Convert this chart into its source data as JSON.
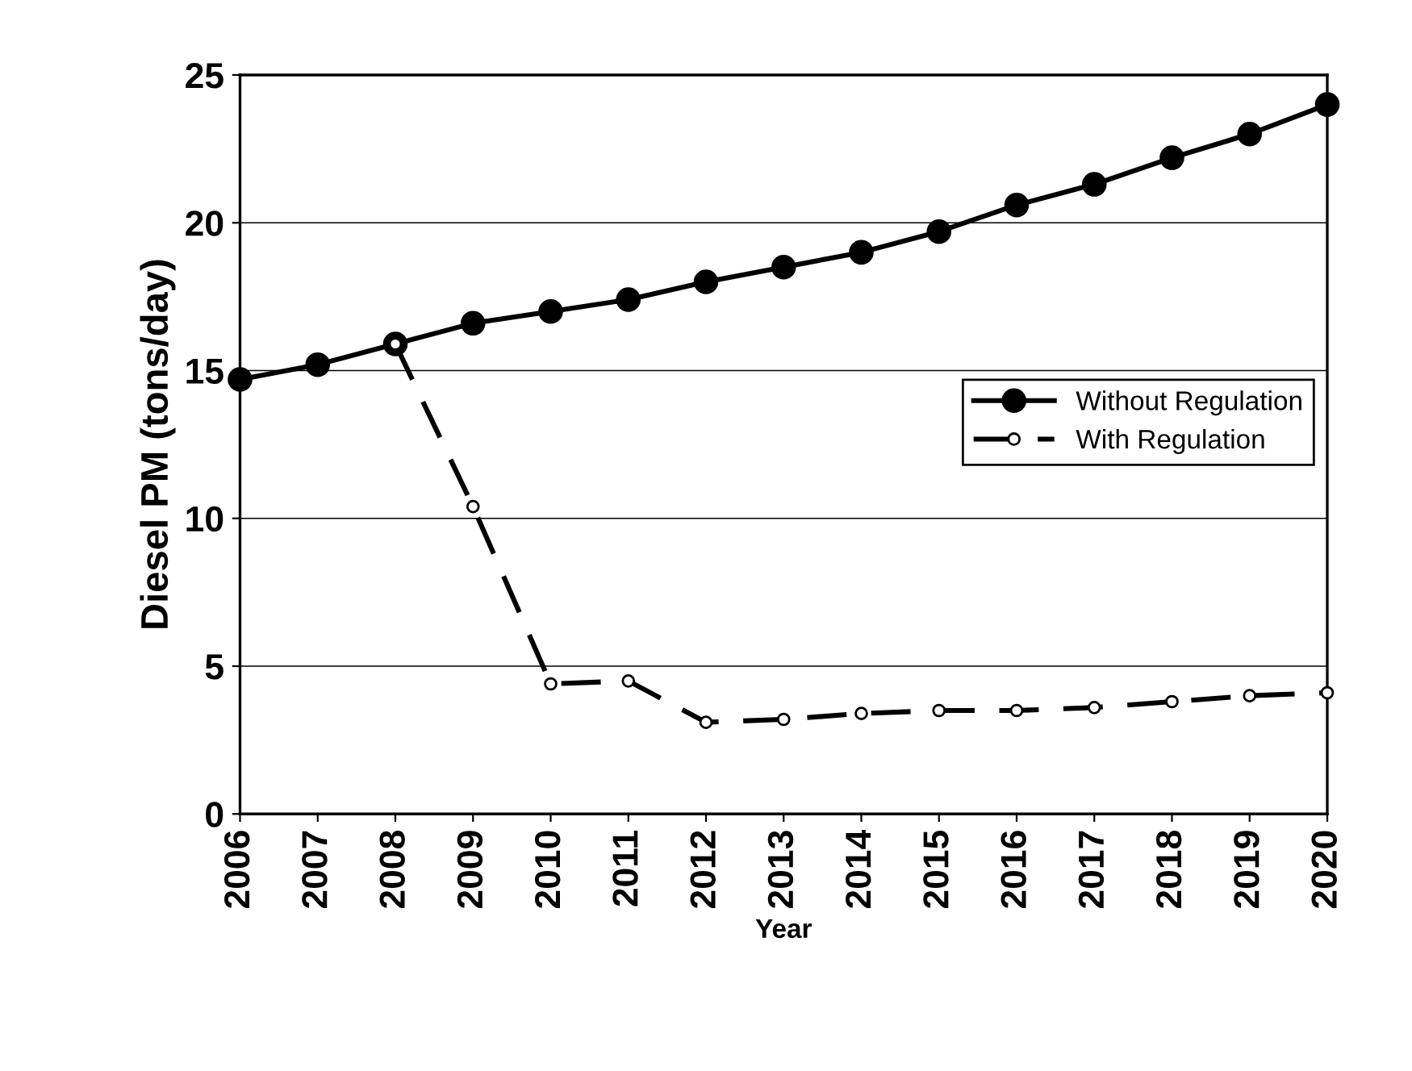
{
  "chart_data": {
    "type": "line",
    "xlabel": "Year",
    "ylabel": "Diesel PM (tons/day)",
    "categories": [
      "2006",
      "2007",
      "2008",
      "2009",
      "2010",
      "2011",
      "2012",
      "2013",
      "2014",
      "2015",
      "2016",
      "2017",
      "2018",
      "2019",
      "2020"
    ],
    "series": [
      {
        "name": "Without Regulation",
        "color": "#000000",
        "marker": "circle",
        "line_style": "solid",
        "values": [
          14.7,
          15.2,
          15.9,
          16.6,
          17.0,
          17.4,
          18.0,
          18.5,
          19.0,
          19.7,
          20.6,
          21.3,
          22.2,
          23.0,
          24.0
        ]
      },
      {
        "name": "With Regulation",
        "color": "#000000",
        "marker": "circle",
        "line_style": "dashed",
        "values": [
          null,
          null,
          15.9,
          10.4,
          4.4,
          4.5,
          3.1,
          3.2,
          3.4,
          3.5,
          3.5,
          3.6,
          3.8,
          4.0,
          4.1
        ]
      }
    ],
    "ylim": [
      0,
      25
    ],
    "yticks": [
      0,
      5,
      10,
      15,
      20,
      25
    ],
    "grid": "y",
    "legend": "right"
  }
}
